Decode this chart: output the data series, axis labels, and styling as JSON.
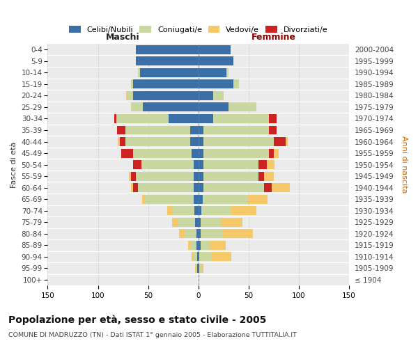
{
  "age_groups": [
    "100+",
    "95-99",
    "90-94",
    "85-89",
    "80-84",
    "75-79",
    "70-74",
    "65-69",
    "60-64",
    "55-59",
    "50-54",
    "45-49",
    "40-44",
    "35-39",
    "30-34",
    "25-29",
    "20-24",
    "15-19",
    "10-14",
    "5-9",
    "0-4"
  ],
  "birth_years": [
    "≤ 1904",
    "1905-1909",
    "1910-1914",
    "1915-1919",
    "1920-1924",
    "1925-1929",
    "1930-1934",
    "1935-1939",
    "1940-1944",
    "1945-1949",
    "1950-1954",
    "1955-1959",
    "1960-1964",
    "1965-1969",
    "1970-1974",
    "1975-1979",
    "1980-1984",
    "1985-1989",
    "1990-1994",
    "1995-1999",
    "2000-2004"
  ],
  "males_celibi": [
    0,
    1,
    1,
    2,
    2,
    3,
    4,
    5,
    5,
    5,
    5,
    7,
    8,
    8,
    30,
    55,
    65,
    65,
    58,
    62,
    62
  ],
  "males_coniugati": [
    0,
    1,
    4,
    6,
    12,
    18,
    22,
    48,
    55,
    57,
    52,
    58,
    65,
    65,
    52,
    12,
    5,
    2,
    2,
    0,
    0
  ],
  "males_vedovi": [
    0,
    1,
    2,
    2,
    5,
    5,
    5,
    3,
    2,
    2,
    0,
    0,
    2,
    0,
    0,
    0,
    2,
    0,
    0,
    0,
    0
  ],
  "males_divorziati": [
    0,
    0,
    0,
    0,
    0,
    0,
    0,
    0,
    5,
    5,
    8,
    12,
    5,
    8,
    2,
    0,
    0,
    0,
    0,
    0,
    0
  ],
  "fem_nubili": [
    0,
    1,
    1,
    2,
    2,
    2,
    3,
    4,
    5,
    5,
    5,
    5,
    5,
    5,
    15,
    30,
    15,
    35,
    28,
    35,
    32
  ],
  "fem_coniugate": [
    0,
    2,
    12,
    10,
    22,
    20,
    30,
    45,
    60,
    55,
    55,
    65,
    70,
    65,
    55,
    28,
    10,
    5,
    2,
    0,
    0
  ],
  "fem_vedove": [
    0,
    2,
    20,
    15,
    30,
    22,
    25,
    20,
    18,
    10,
    8,
    5,
    2,
    0,
    0,
    0,
    0,
    0,
    0,
    0,
    0
  ],
  "fem_divorziate": [
    0,
    0,
    0,
    0,
    0,
    0,
    0,
    0,
    8,
    5,
    8,
    5,
    12,
    8,
    8,
    0,
    0,
    0,
    0,
    0,
    0
  ],
  "color_celibi": "#3a6fa8",
  "color_coniugati": "#c8d8a0",
  "color_vedovi": "#f5c96a",
  "color_divorziati": "#cc2222",
  "title": "Popolazione per età, sesso e stato civile - 2005",
  "subtitle": "COMUNE DI MADRUZZO (TN) - Dati ISTAT 1° gennaio 2005 - Elaborazione TUTTITALIA.IT",
  "label_maschi": "Maschi",
  "label_femmine": "Femmine",
  "ylabel_left": "Fasce di età",
  "ylabel_right": "Anni di nascita",
  "legend_labels": [
    "Celibi/Nubili",
    "Coniugati/e",
    "Vedovi/e",
    "Divorziati/e"
  ],
  "xlim": 150,
  "bg_color": "#ffffff",
  "plot_bg": "#ebebeb",
  "grid_color": "#cccccc"
}
